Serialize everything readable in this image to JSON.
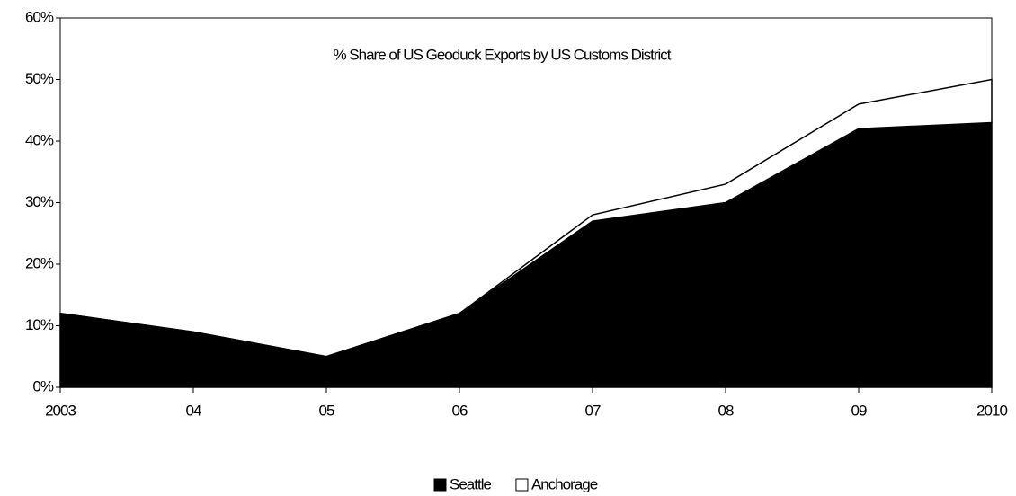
{
  "chart_data": {
    "type": "stacked_area",
    "title": "% Share of US Geoduck Exports by US Customs District",
    "categories": [
      "2003",
      "04",
      "05",
      "06",
      "07",
      "08",
      "09",
      "2010"
    ],
    "series": [
      {
        "name": "Seattle",
        "color": "#000000",
        "values": [
          12,
          9,
          5,
          12,
          27,
          30,
          42,
          43
        ]
      },
      {
        "name": "Anchorage",
        "color": "#ffffff",
        "values": [
          0,
          0,
          0,
          0,
          1,
          3,
          4,
          7
        ]
      }
    ],
    "ylim": [
      0,
      60
    ],
    "yticks": [
      {
        "value": 0,
        "label": "0%"
      },
      {
        "value": 10,
        "label": "10%"
      },
      {
        "value": 20,
        "label": "20%"
      },
      {
        "value": 30,
        "label": "30%"
      },
      {
        "value": 40,
        "label": "40%"
      },
      {
        "value": 50,
        "label": "50%"
      },
      {
        "value": 60,
        "label": "60%"
      }
    ],
    "grid": false,
    "legend": "bottom"
  }
}
